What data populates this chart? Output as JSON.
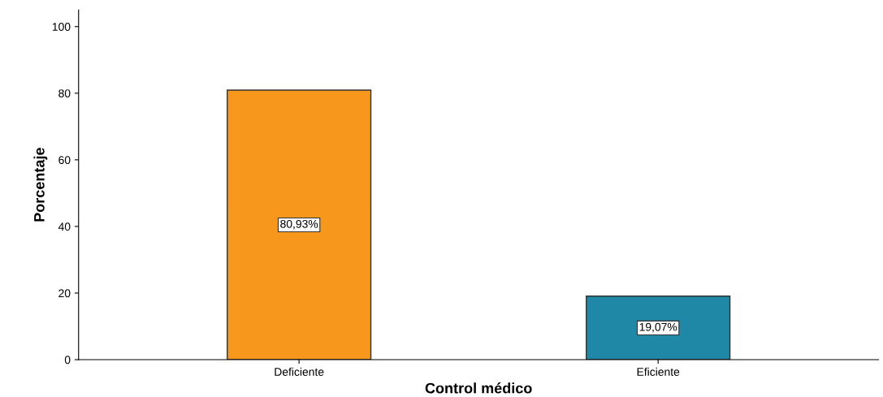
{
  "chart_data": {
    "type": "bar",
    "xlabel": "Control médico",
    "ylabel": "Porcentaje",
    "categories": [
      "Deficiente",
      "Eficiente"
    ],
    "values": [
      80.93,
      19.07
    ],
    "colors": [
      "#f7981d",
      "#1f88a6"
    ],
    "value_labels": [
      "80,93%",
      "19,07%"
    ],
    "ylim": [
      0,
      105
    ],
    "yticks": [
      0,
      20,
      40,
      60,
      80,
      100
    ],
    "grid": false,
    "legend": false
  }
}
